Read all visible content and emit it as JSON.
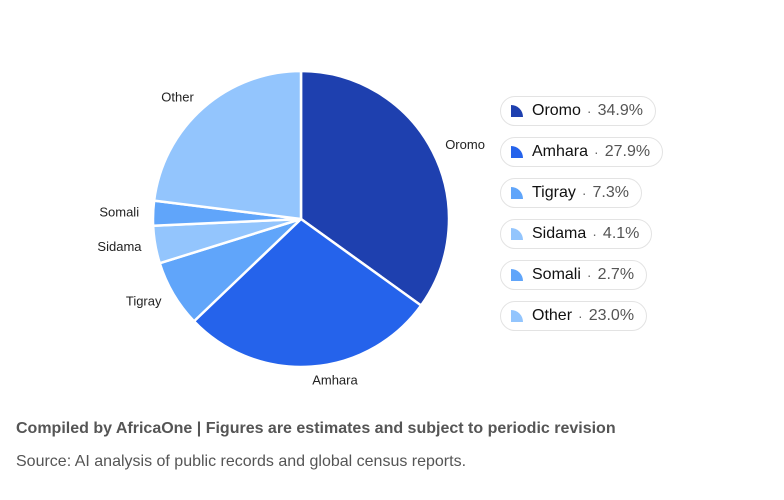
{
  "chart_data": {
    "type": "pie",
    "categories": [
      "Oromo",
      "Amhara",
      "Tigray",
      "Sidama",
      "Somali",
      "Other"
    ],
    "values": [
      34.9,
      27.9,
      7.3,
      4.1,
      2.7,
      23.0
    ],
    "pct_labels": [
      "34.9%",
      "27.9%",
      "7.3%",
      "4.1%",
      "2.7%",
      "23.0%"
    ],
    "colors": [
      "#1e40af",
      "#2563eb",
      "#60a5fa",
      "#93c5fd",
      "#60a5fa",
      "#93c5fd"
    ],
    "legend_placement": "right"
  },
  "legend": {
    "separator": "·"
  },
  "footer": {
    "credit": "Compiled by AfricaOne | Figures are estimates and subject to periodic revision",
    "source": "Source: AI analysis of public records and global census reports."
  }
}
